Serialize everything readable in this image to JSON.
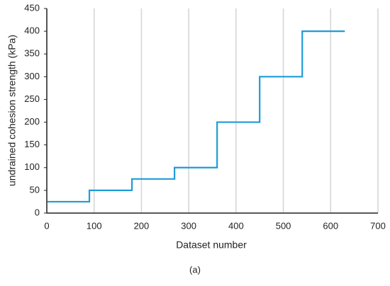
{
  "chart_data": {
    "type": "line",
    "caption": "(a)",
    "x_label": "Dataset number",
    "y_label": "undrained cohesion strength (kPa)",
    "x": [
      1,
      90,
      90,
      180,
      180,
      270,
      270,
      360,
      360,
      450,
      450,
      540,
      540,
      630
    ],
    "series": [
      {
        "color": "#1f9bd7",
        "values": [
          25,
          25,
          50,
          50,
          75,
          75,
          100,
          100,
          200,
          200,
          300,
          300,
          400,
          400
        ]
      }
    ],
    "xlim": [
      0,
      700
    ],
    "xticks": [
      0,
      100,
      200,
      300,
      400,
      500,
      600,
      700
    ],
    "ylim": [
      0,
      450
    ],
    "yticks": [
      0,
      50,
      100,
      150,
      200,
      250,
      300,
      350,
      400,
      450
    ],
    "grid": "x"
  }
}
